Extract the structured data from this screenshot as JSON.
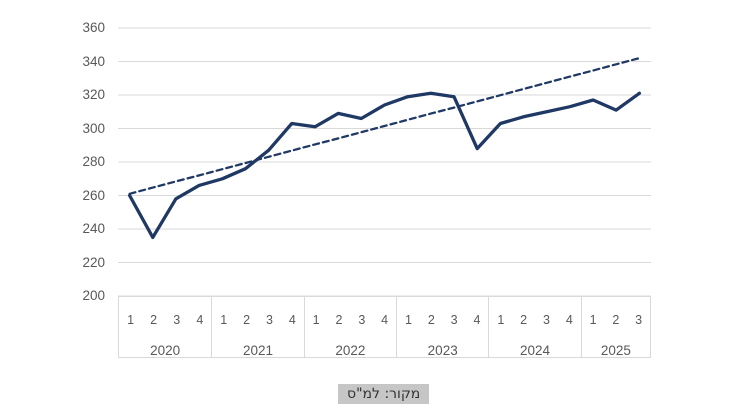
{
  "chart_data": {
    "type": "line",
    "title": "",
    "xlabel": "",
    "ylabel": "",
    "ylim": [
      200,
      360
    ],
    "yticks": [
      200,
      220,
      240,
      260,
      280,
      300,
      320,
      340,
      360
    ],
    "grid": true,
    "legend_position": "none",
    "x_groups": [
      {
        "year": "2020",
        "quarters": [
          "1",
          "2",
          "3",
          "4"
        ]
      },
      {
        "year": "2021",
        "quarters": [
          "1",
          "2",
          "3",
          "4"
        ]
      },
      {
        "year": "2022",
        "quarters": [
          "1",
          "2",
          "3",
          "4"
        ]
      },
      {
        "year": "2023",
        "quarters": [
          "1",
          "2",
          "3",
          "4"
        ]
      },
      {
        "year": "2024",
        "quarters": [
          "1",
          "2",
          "3",
          "4"
        ]
      },
      {
        "year": "2025",
        "quarters": [
          "1",
          "2",
          "3"
        ]
      }
    ],
    "series": [
      {
        "name": "index-actual",
        "style": "solid",
        "values": [
          260,
          235,
          258,
          266,
          270,
          276,
          287,
          303,
          301,
          309,
          306,
          314,
          319,
          321,
          319,
          288,
          303,
          307,
          310,
          313,
          317,
          311,
          321
        ]
      },
      {
        "name": "linear-trend",
        "style": "dashed",
        "values": [
          261.0,
          264.7,
          268.4,
          272.0,
          275.7,
          279.4,
          283.1,
          286.8,
          290.5,
          294.1,
          297.8,
          301.5,
          305.2,
          308.9,
          312.5,
          316.2,
          319.9,
          323.6,
          327.3,
          331.0,
          334.6,
          338.3,
          342.0
        ]
      }
    ]
  },
  "source_note": {
    "text": "מקור: למ\"ס"
  },
  "colors": {
    "line": "#1f3864",
    "trend": "#1f3864",
    "grid": "#d9d9d9",
    "axis_text": "#595959",
    "source_bg": "#c6c6c6",
    "source_text": "#333333"
  }
}
